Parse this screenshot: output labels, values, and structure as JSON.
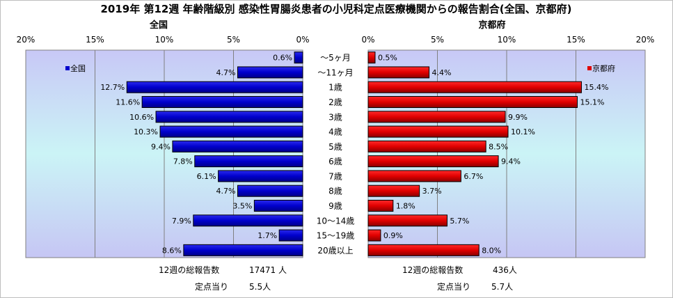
{
  "title": "2019年 第12週 年齢階級別 感染性胃腸炎患者の小児科定点医療機関からの報告割合(全国、京都府)",
  "chart_data": {
    "type": "bar",
    "orientation": "horizontal",
    "categories": [
      "～5ヶ月",
      "～11ヶ月",
      "1歳",
      "2歳",
      "3歳",
      "4歳",
      "5歳",
      "6歳",
      "7歳",
      "8歳",
      "9歳",
      "10～14歳",
      "15～19歳",
      "20歳以上"
    ],
    "series": [
      {
        "name": "全国",
        "color": "#0000cc",
        "values": [
          0.6,
          4.7,
          12.7,
          11.6,
          10.6,
          10.3,
          9.4,
          7.8,
          6.1,
          4.7,
          3.5,
          7.9,
          1.7,
          8.6
        ]
      },
      {
        "name": "京都府",
        "color": "#e00000",
        "values": [
          0.5,
          4.4,
          15.4,
          15.1,
          9.9,
          10.1,
          8.5,
          9.4,
          6.7,
          3.7,
          1.8,
          5.7,
          0.9,
          8.0
        ]
      }
    ],
    "panel_titles": [
      "全国",
      "京都府"
    ],
    "xlim": [
      0,
      20
    ],
    "ticks": [
      0,
      5,
      10,
      15,
      20
    ],
    "legend": [
      "top-left",
      "top-right"
    ],
    "grid": true
  },
  "footer": {
    "national": {
      "label1": "12週の総報告数",
      "value1": "17471 人",
      "label2": "定点当り",
      "value2": "5.5人"
    },
    "kyoto": {
      "label1": "12週の総報告数",
      "value1": "436人",
      "label2": "定点当り",
      "value2": "5.7人"
    }
  }
}
